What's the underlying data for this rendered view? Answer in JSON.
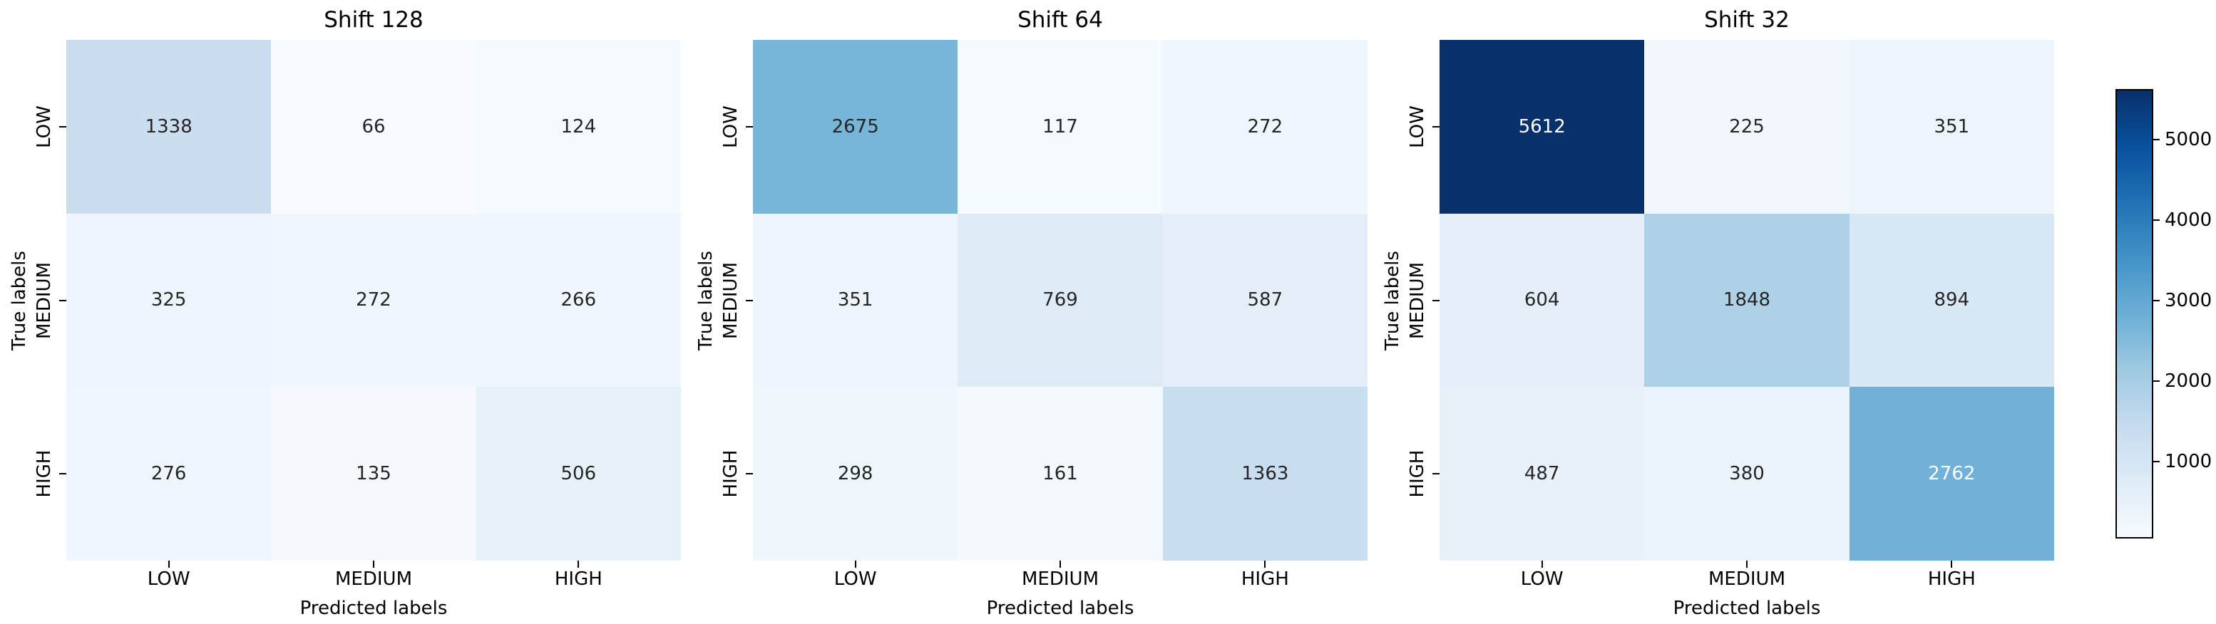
{
  "figure": {
    "background": "#ffffff"
  },
  "chart_data": {
    "type": "heatmap",
    "layout_hint": "three confusion matrices side by side sharing one vertical colorbar on the right, no gridlines, no spines",
    "panels": [
      {
        "title": "Shift 128",
        "values": [
          [
            1338,
            66,
            124
          ],
          [
            325,
            272,
            266
          ],
          [
            276,
            135,
            506
          ]
        ]
      },
      {
        "title": "Shift 64",
        "values": [
          [
            2675,
            117,
            272
          ],
          [
            351,
            769,
            587
          ],
          [
            298,
            161,
            1363
          ]
        ]
      },
      {
        "title": "Shift 32",
        "values": [
          [
            5612,
            225,
            351
          ],
          [
            604,
            1848,
            894
          ],
          [
            487,
            380,
            2762
          ]
        ]
      }
    ],
    "x_categories": [
      "LOW",
      "MEDIUM",
      "HIGH"
    ],
    "y_categories": [
      "LOW",
      "MEDIUM",
      "HIGH"
    ],
    "xlabel": "Predicted labels",
    "ylabel": "True labels",
    "colormap": "Blues",
    "colormap_stops": [
      "#f7fbff",
      "#deebf7",
      "#c6dbef",
      "#9ecae1",
      "#6baed6",
      "#4292c6",
      "#2171b5",
      "#08519c",
      "#08306b"
    ],
    "vmin": 66,
    "vmax": 5612,
    "colorbar": {
      "position": "right",
      "ticks": [
        1000,
        2000,
        3000,
        4000,
        5000
      ]
    },
    "annotation_colors": {
      "dark": "#262626",
      "light": "#ffffff"
    },
    "axis_text_color": "#000000"
  }
}
